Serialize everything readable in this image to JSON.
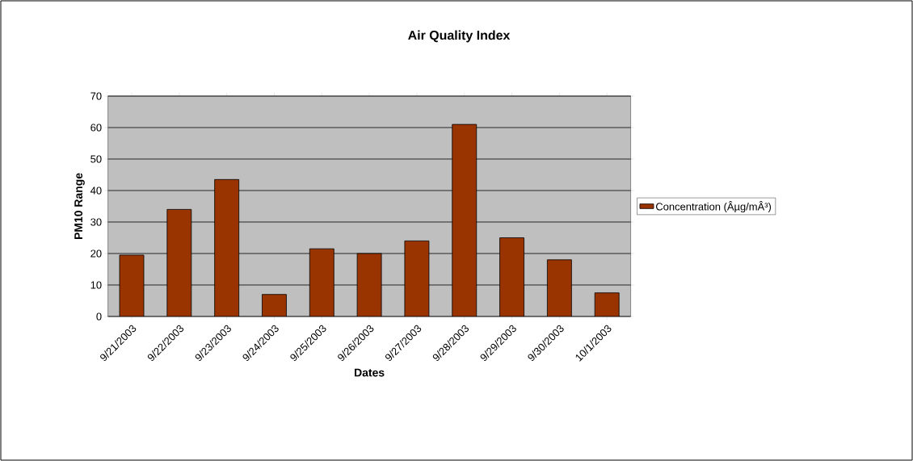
{
  "chart_data": {
    "type": "bar",
    "title": "Air Quality Index",
    "xlabel": "Dates",
    "ylabel": "PM10 Range",
    "categories": [
      "9/21/2003",
      "9/22/2003",
      "9/23/2003",
      "9/24/2003",
      "9/25/2003",
      "9/26/2003",
      "9/27/2003",
      "9/28/2003",
      "9/29/2003",
      "9/30/2003",
      "10/1/2003"
    ],
    "series": [
      {
        "name": "Concentration (Âµg/mÂ³)",
        "color": "#993300",
        "values": [
          19.5,
          34,
          43.5,
          7,
          21.5,
          20,
          24,
          61,
          25,
          18,
          7.5
        ]
      }
    ],
    "ylim": [
      0,
      70
    ],
    "yticks": [
      0,
      10,
      20,
      30,
      40,
      50,
      60,
      70
    ],
    "grid": "y",
    "legend": "right"
  }
}
